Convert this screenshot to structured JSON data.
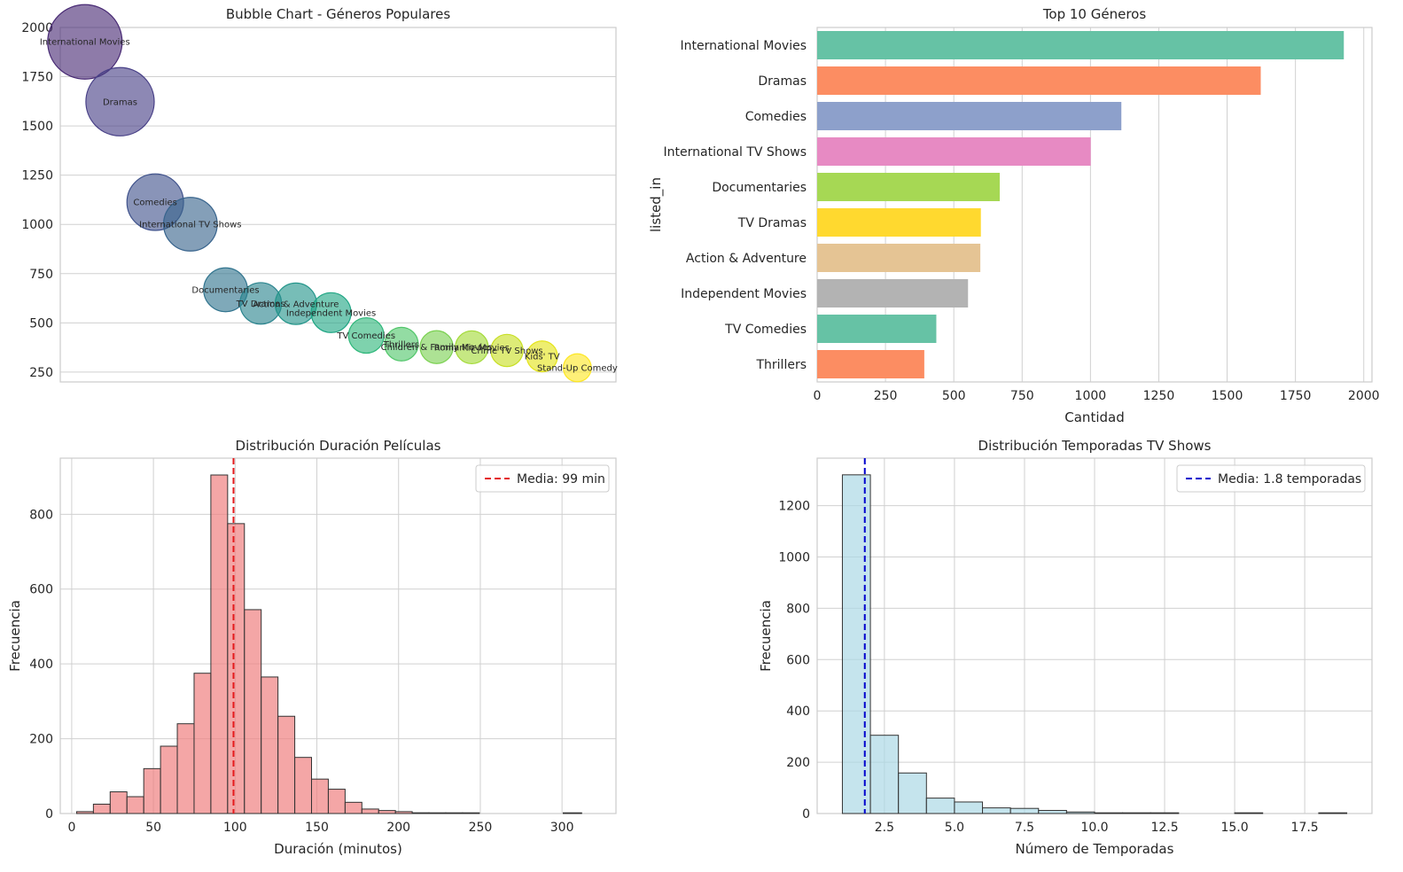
{
  "chart_data": [
    {
      "type": "scatter",
      "title": "Bubble Chart - Géneros Populares",
      "xlabel": "",
      "ylabel": "",
      "ylim": [
        200,
        2000
      ],
      "y_ticks": [
        250,
        500,
        750,
        1000,
        1250,
        1500,
        1750,
        2000
      ],
      "points": [
        {
          "label": "International Movies",
          "value": 1927,
          "color": "#482a74"
        },
        {
          "label": "Dramas",
          "value": 1623,
          "color": "#473f86"
        },
        {
          "label": "Comedies",
          "value": 1113,
          "color": "#40538c"
        },
        {
          "label": "International TV Shows",
          "value": 1001,
          "color": "#38648d"
        },
        {
          "label": "Documentaries",
          "value": 668,
          "color": "#31748e"
        },
        {
          "label": "TV Dramas",
          "value": 599,
          "color": "#2a848e"
        },
        {
          "label": "Action & Adventure",
          "value": 597,
          "color": "#23958a"
        },
        {
          "label": "Independent Movies",
          "value": 552,
          "color": "#20a684"
        },
        {
          "label": "TV Comedies",
          "value": 436,
          "color": "#2eb77a"
        },
        {
          "label": "Thrillers",
          "value": 392,
          "color": "#51c66a"
        },
        {
          "label": "Children & Family Movies",
          "value": 377,
          "color": "#7bd152"
        },
        {
          "label": "Romantic Movies",
          "value": 376,
          "color": "#a3da37"
        },
        {
          "label": "Crime TV Shows",
          "value": 360,
          "color": "#c8df24"
        },
        {
          "label": "Kids' TV",
          "value": 330,
          "color": "#e4e419"
        },
        {
          "label": "Stand-Up Comedy",
          "value": 272,
          "color": "#fde725"
        }
      ],
      "grid": true
    },
    {
      "type": "bar",
      "orientation": "horizontal",
      "title": "Top 10 Géneros",
      "xlabel": "Cantidad",
      "ylabel": "listed_in",
      "xlim": [
        0,
        2000
      ],
      "x_ticks": [
        0,
        250,
        500,
        750,
        1000,
        1250,
        1500,
        1750,
        2000
      ],
      "categories": [
        "International Movies",
        "Dramas",
        "Comedies",
        "International TV Shows",
        "Documentaries",
        "TV Dramas",
        "Action & Adventure",
        "Independent Movies",
        "TV Comedies",
        "Thrillers"
      ],
      "values": [
        1927,
        1623,
        1113,
        1001,
        668,
        599,
        597,
        552,
        436,
        392
      ],
      "colors": [
        "#66c2a5",
        "#fc8d62",
        "#8da0cb",
        "#e78ac3",
        "#a6d854",
        "#ffd92f",
        "#e5c494",
        "#b3b3b3",
        "#66c2a5",
        "#fc8d62"
      ],
      "grid": true
    },
    {
      "type": "histogram",
      "title": "Distribución Duración Películas",
      "xlabel": "Duración (minutos)",
      "ylabel": "Frecuencia",
      "xlim": [
        -7,
        333
      ],
      "ylim": [
        0,
        950
      ],
      "x_ticks": [
        0,
        50,
        100,
        150,
        200,
        250,
        300
      ],
      "y_ticks": [
        0,
        200,
        400,
        600,
        800
      ],
      "bin_edges": [
        3,
        13.27,
        23.53,
        33.8,
        44.07,
        54.33,
        64.6,
        74.87,
        85.13,
        95.4,
        105.67,
        115.93,
        126.2,
        136.47,
        146.73,
        157,
        167.27,
        177.53,
        187.8,
        198.07,
        208.33,
        218.6,
        228.87,
        239.13,
        249.4,
        259.67,
        269.93,
        280.2,
        290.47,
        300.73,
        312
      ],
      "counts": [
        5,
        25,
        58,
        45,
        120,
        180,
        240,
        375,
        905,
        775,
        545,
        365,
        260,
        150,
        92,
        65,
        30,
        12,
        8,
        5,
        2,
        1,
        1,
        1,
        0,
        0,
        0,
        0,
        0,
        1
      ],
      "bar_color": "#f08080",
      "mean": 99,
      "mean_color": "#e41a1c",
      "legend": {
        "label": "Media: 99 min",
        "position": "upper right"
      },
      "grid": true
    },
    {
      "type": "histogram",
      "title": "Distribución Temporadas TV Shows",
      "xlabel": "Número de Temporadas",
      "ylabel": "Frecuencia",
      "xlim": [
        0.1,
        19.9
      ],
      "ylim": [
        0,
        1385
      ],
      "x_ticks": [
        2.5,
        5.0,
        7.5,
        10.0,
        12.5,
        15.0,
        17.5
      ],
      "x_tick_labels": [
        "2.5",
        "5.0",
        "7.5",
        "10.0",
        "12.5",
        "15.0",
        "17.5"
      ],
      "y_ticks": [
        0,
        200,
        400,
        600,
        800,
        1000,
        1200
      ],
      "bin_edges": [
        1,
        2,
        3,
        4,
        5,
        6,
        7,
        8,
        9,
        10,
        11,
        12,
        13,
        14,
        15,
        16,
        17,
        18,
        19
      ],
      "counts": [
        1320,
        305,
        158,
        60,
        45,
        22,
        20,
        12,
        6,
        2,
        2,
        1,
        0,
        0,
        1,
        0,
        0,
        1
      ],
      "bar_color": "#add8e6",
      "mean": 1.8,
      "mean_color": "#0000cd",
      "legend": {
        "label": "Media: 1.8 temporadas",
        "position": "upper right"
      },
      "grid": true
    }
  ]
}
